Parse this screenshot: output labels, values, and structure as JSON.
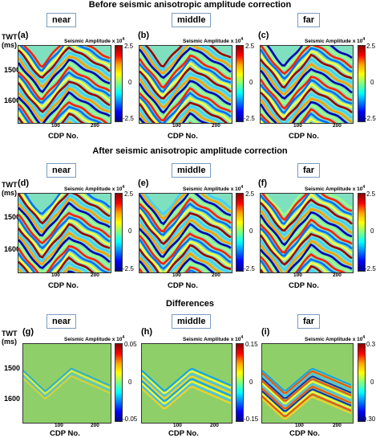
{
  "sections": [
    {
      "title": "Before seismic anisotropic amplitude correction",
      "colorbar": {
        "max": "2.5",
        "mid": "0",
        "min": "-2.5"
      },
      "panels": [
        {
          "letter": "(a)",
          "label": "near"
        },
        {
          "letter": "(b)",
          "label": "middle"
        },
        {
          "letter": "(c)",
          "label": "far"
        }
      ]
    },
    {
      "title": "After seismic anisotropic amplitude correction",
      "colorbar": {
        "max": "2.5",
        "mid": "0",
        "min": "-2.5"
      },
      "panels": [
        {
          "letter": "(d)",
          "label": "near"
        },
        {
          "letter": "(e)",
          "label": "middle"
        },
        {
          "letter": "(f)",
          "label": "far"
        }
      ]
    },
    {
      "title": "Differences",
      "colorbars": [
        {
          "max": "0.05",
          "mid": "0",
          "min": "-0.05"
        },
        {
          "max": "0.15",
          "mid": "0",
          "min": "-0.15"
        },
        {
          "max": "0.3",
          "mid": "0",
          "min": "-0.30"
        }
      ],
      "panels": [
        {
          "letter": "(g)",
          "label": "near"
        },
        {
          "letter": "(h)",
          "label": "middle"
        },
        {
          "letter": "(i)",
          "label": "far"
        }
      ]
    }
  ],
  "axis": {
    "twt": "TWT",
    "ms": "(ms)",
    "y_ticks": [
      "1500",
      "1600"
    ],
    "x_ticks": [
      "100",
      "200"
    ],
    "x_label": "CDP No.",
    "x_label_last": "CDP No.",
    "amp_label": "Seismic Amplitude x 10",
    "amp_exp": "4"
  },
  "colors": {
    "border": "#333333",
    "label_box_border": "#7a9cc0",
    "diff_background": "#8fcf6a"
  }
}
